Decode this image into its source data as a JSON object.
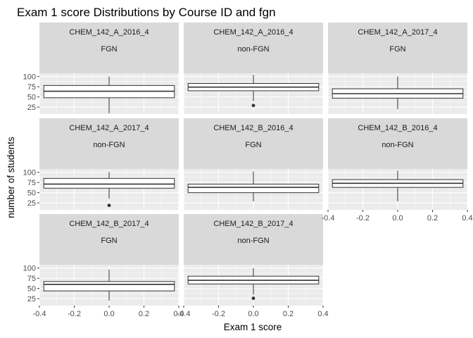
{
  "chart_data": {
    "type": "boxplot",
    "title": "Exam 1 score Distributions by Course ID and fgn",
    "xlabel": "Exam 1 score",
    "ylabel": "number of students",
    "x_ticks": [
      "-0.4",
      "-0.2",
      "0.0",
      "0.2",
      "0.4"
    ],
    "y_ticks": [
      "25",
      "50",
      "75",
      "100"
    ],
    "xlim": [
      -0.4,
      0.4
    ],
    "ylim": [
      8,
      108
    ],
    "grid": true,
    "panel_background": "#ebebeb",
    "strip_background": "#d9d9d9",
    "box_fill": "#ffffff",
    "box_outline": "#333333",
    "panels": [
      {
        "course": "CHEM_142_A_2016_4",
        "fgn": "FGN",
        "stats": {
          "min": 10,
          "q1": 48,
          "median": 64,
          "q3": 78,
          "max": 100
        },
        "outliers": []
      },
      {
        "course": "CHEM_142_A_2016_4",
        "fgn": "non-FGN",
        "stats": {
          "min": 40,
          "q1": 65,
          "median": 74,
          "q3": 83,
          "max": 104
        },
        "outliers": [
          29
        ]
      },
      {
        "course": "CHEM_142_A_2017_4",
        "fgn": "FGN",
        "stats": {
          "min": 20,
          "q1": 47,
          "median": 58,
          "q3": 70,
          "max": 100
        },
        "outliers": []
      },
      {
        "course": "CHEM_142_A_2017_4",
        "fgn": "non-FGN",
        "stats": {
          "min": 35,
          "q1": 61,
          "median": 71,
          "q3": 85,
          "max": 101
        },
        "outliers": [
          19
        ]
      },
      {
        "course": "CHEM_142_B_2016_4",
        "fgn": "FGN",
        "stats": {
          "min": 29,
          "q1": 50,
          "median": 63,
          "q3": 71,
          "max": 102
        },
        "outliers": []
      },
      {
        "course": "CHEM_142_B_2016_4",
        "fgn": "non-FGN",
        "stats": {
          "min": 29,
          "q1": 63,
          "median": 73,
          "q3": 82,
          "max": 104
        },
        "outliers": []
      },
      {
        "course": "CHEM_142_B_2017_4",
        "fgn": "FGN",
        "stats": {
          "min": 20,
          "q1": 44,
          "median": 60,
          "q3": 67,
          "max": 96
        },
        "outliers": []
      },
      {
        "course": "CHEM_142_B_2017_4",
        "fgn": "non-FGN",
        "stats": {
          "min": 35,
          "q1": 61,
          "median": 70,
          "q3": 80,
          "max": 100
        },
        "outliers": [
          26
        ]
      }
    ]
  }
}
